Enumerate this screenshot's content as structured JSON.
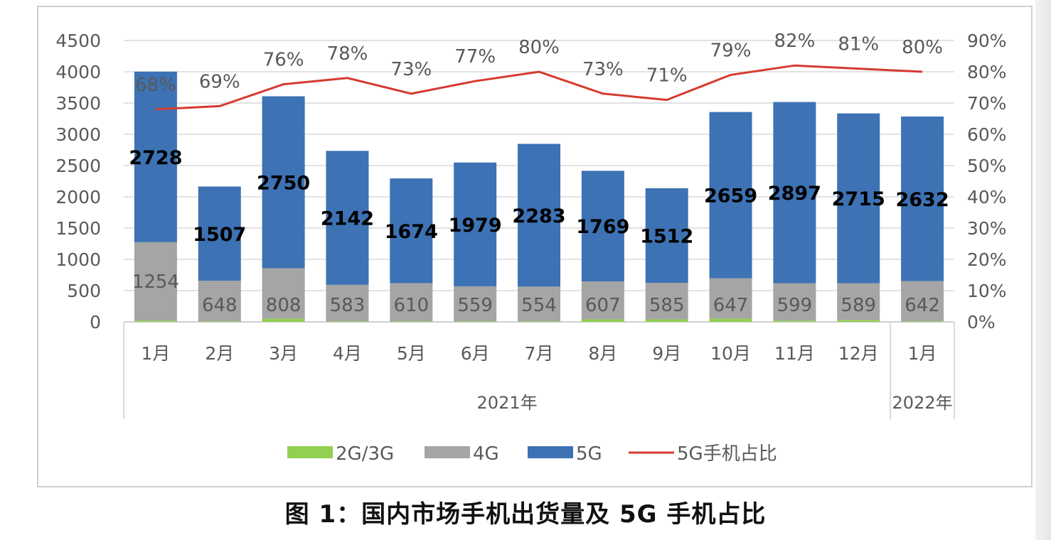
{
  "caption": "图 1：国内市场手机出货量及 5G 手机占比",
  "chart_data": {
    "type": "bar",
    "stacked": true,
    "categories": [
      "1月",
      "2月",
      "3月",
      "4月",
      "5月",
      "6月",
      "7月",
      "8月",
      "9月",
      "10月",
      "11月",
      "12月",
      "1月"
    ],
    "groups": [
      {
        "label": "2021年",
        "from": 0,
        "to": 11
      },
      {
        "label": "2022年",
        "from": 12,
        "to": 12
      }
    ],
    "series": [
      {
        "name": "2G/3G",
        "color": "#92d050",
        "values": [
          20,
          10,
          50,
          10,
          10,
          10,
          10,
          40,
          40,
          50,
          20,
          30,
          10
        ]
      },
      {
        "name": "4G",
        "color": "#a5a5a5",
        "values": [
          1254,
          648,
          808,
          583,
          610,
          559,
          554,
          607,
          585,
          647,
          599,
          589,
          642
        ],
        "labels": [
          "1254",
          "648",
          "808",
          "583",
          "610",
          "559",
          "554",
          "607",
          "585",
          "647",
          "599",
          "589",
          "642"
        ]
      },
      {
        "name": "5G",
        "color": "#3d72b4",
        "values": [
          2728,
          1507,
          2750,
          2142,
          1674,
          1979,
          2283,
          1769,
          1512,
          2659,
          2897,
          2715,
          2632
        ],
        "labels": [
          "2728",
          "1507",
          "2750",
          "2142",
          "1674",
          "1979",
          "2283",
          "1769",
          "1512",
          "2659",
          "2897",
          "2715",
          "2632"
        ]
      }
    ],
    "line_series": {
      "name": "5G手机占比",
      "color": "#d63a2f",
      "axis": "right",
      "values": [
        68,
        69,
        76,
        78,
        73,
        77,
        80,
        73,
        71,
        79,
        82,
        81,
        80
      ],
      "labels": [
        "68%",
        "69%",
        "76%",
        "78%",
        "73%",
        "77%",
        "80%",
        "73%",
        "71%",
        "79%",
        "82%",
        "81%",
        "80%"
      ]
    },
    "y_left": {
      "range": [
        0,
        4500
      ],
      "ticks": [
        "0",
        "500",
        "1000",
        "1500",
        "2000",
        "2500",
        "3000",
        "3500",
        "4000",
        "4500"
      ]
    },
    "y_right": {
      "range": [
        0,
        90
      ],
      "ticks": [
        "0%",
        "10%",
        "20%",
        "30%",
        "40%",
        "50%",
        "60%",
        "70%",
        "80%",
        "90%"
      ]
    },
    "grid": true,
    "legend_position": "bottom",
    "legend": [
      "2G/3G",
      "4G",
      "5G",
      "5G手机占比"
    ]
  }
}
